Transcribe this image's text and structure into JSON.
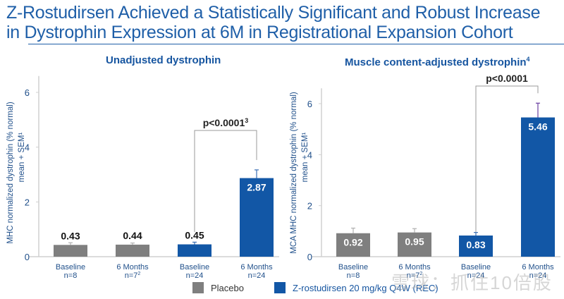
{
  "page": {
    "title_line1": "Z-Rostudirsen Achieved a Statistically Significant and Robust Increase",
    "title_line2": "in Dystrophin Expression at 6M in Registrational Expansion Cohort",
    "watermark": "雪球：抓住10倍股"
  },
  "colors": {
    "placebo": "#7f7f7f",
    "treatment": "#1257a6",
    "title": "#1f5fa8",
    "axis": "#d0d0d0",
    "bracket": "#9a9a9a",
    "error_bar_treatment": "#6a3fa0"
  },
  "legend": [
    {
      "label": "Placebo",
      "color": "#7f7f7f"
    },
    {
      "label": "Z-rostudirsen 20 mg/kg Q4W (REC)",
      "color": "#1257a6"
    }
  ],
  "chart_data": [
    {
      "type": "bar",
      "title": "Unadjusted dystrophin",
      "title_sup": "",
      "ylabel_line1": "MHC normalized dystrophin (% normal)",
      "ylabel_line2": "mean + SEM¹",
      "ylim": [
        0,
        6
      ],
      "yticks": [
        0,
        2,
        4,
        6
      ],
      "categories": [
        {
          "label": "Baseline",
          "n": "n=8",
          "sup": ""
        },
        {
          "label": "6 Months",
          "n": "n=7",
          "sup": "2"
        },
        {
          "label": "Baseline",
          "n": "n=24",
          "sup": ""
        },
        {
          "label": "6 Months",
          "n": "n=24",
          "sup": ""
        }
      ],
      "series_group": [
        "placebo",
        "placebo",
        "treatment",
        "treatment"
      ],
      "values": [
        0.43,
        0.44,
        0.45,
        2.87
      ],
      "sem": [
        0.08,
        0.06,
        0.08,
        0.3
      ],
      "labels_inside": [
        false,
        false,
        false,
        true
      ],
      "pvalue": {
        "text": "p<0.0001",
        "sup": "3",
        "from": 2,
        "to": 3
      }
    },
    {
      "type": "bar",
      "title": "Muscle content-adjusted dystrophin",
      "title_sup": "4",
      "ylabel_line1": "MCA  MHC normalized dystrophin (% normal)",
      "ylabel_line2": "mean + SEM¹",
      "ylim": [
        0,
        6.5
      ],
      "yticks": [
        0,
        2,
        4,
        6
      ],
      "categories": [
        {
          "label": "Baseline",
          "n": "n=8",
          "sup": ""
        },
        {
          "label": "6 Months",
          "n": "n=7",
          "sup": "2"
        },
        {
          "label": "Baseline",
          "n": "n=24",
          "sup": ""
        },
        {
          "label": "6 Months",
          "n": "n=24",
          "sup": ""
        }
      ],
      "series_group": [
        "placebo",
        "placebo",
        "treatment",
        "treatment"
      ],
      "values": [
        0.92,
        0.95,
        0.83,
        5.46
      ],
      "sem": [
        0.2,
        0.15,
        0.12,
        0.56
      ],
      "labels_inside": [
        true,
        true,
        true,
        true
      ],
      "pvalue": {
        "text": "p<0.0001",
        "sup": "",
        "from": 2,
        "to": 3
      }
    }
  ]
}
